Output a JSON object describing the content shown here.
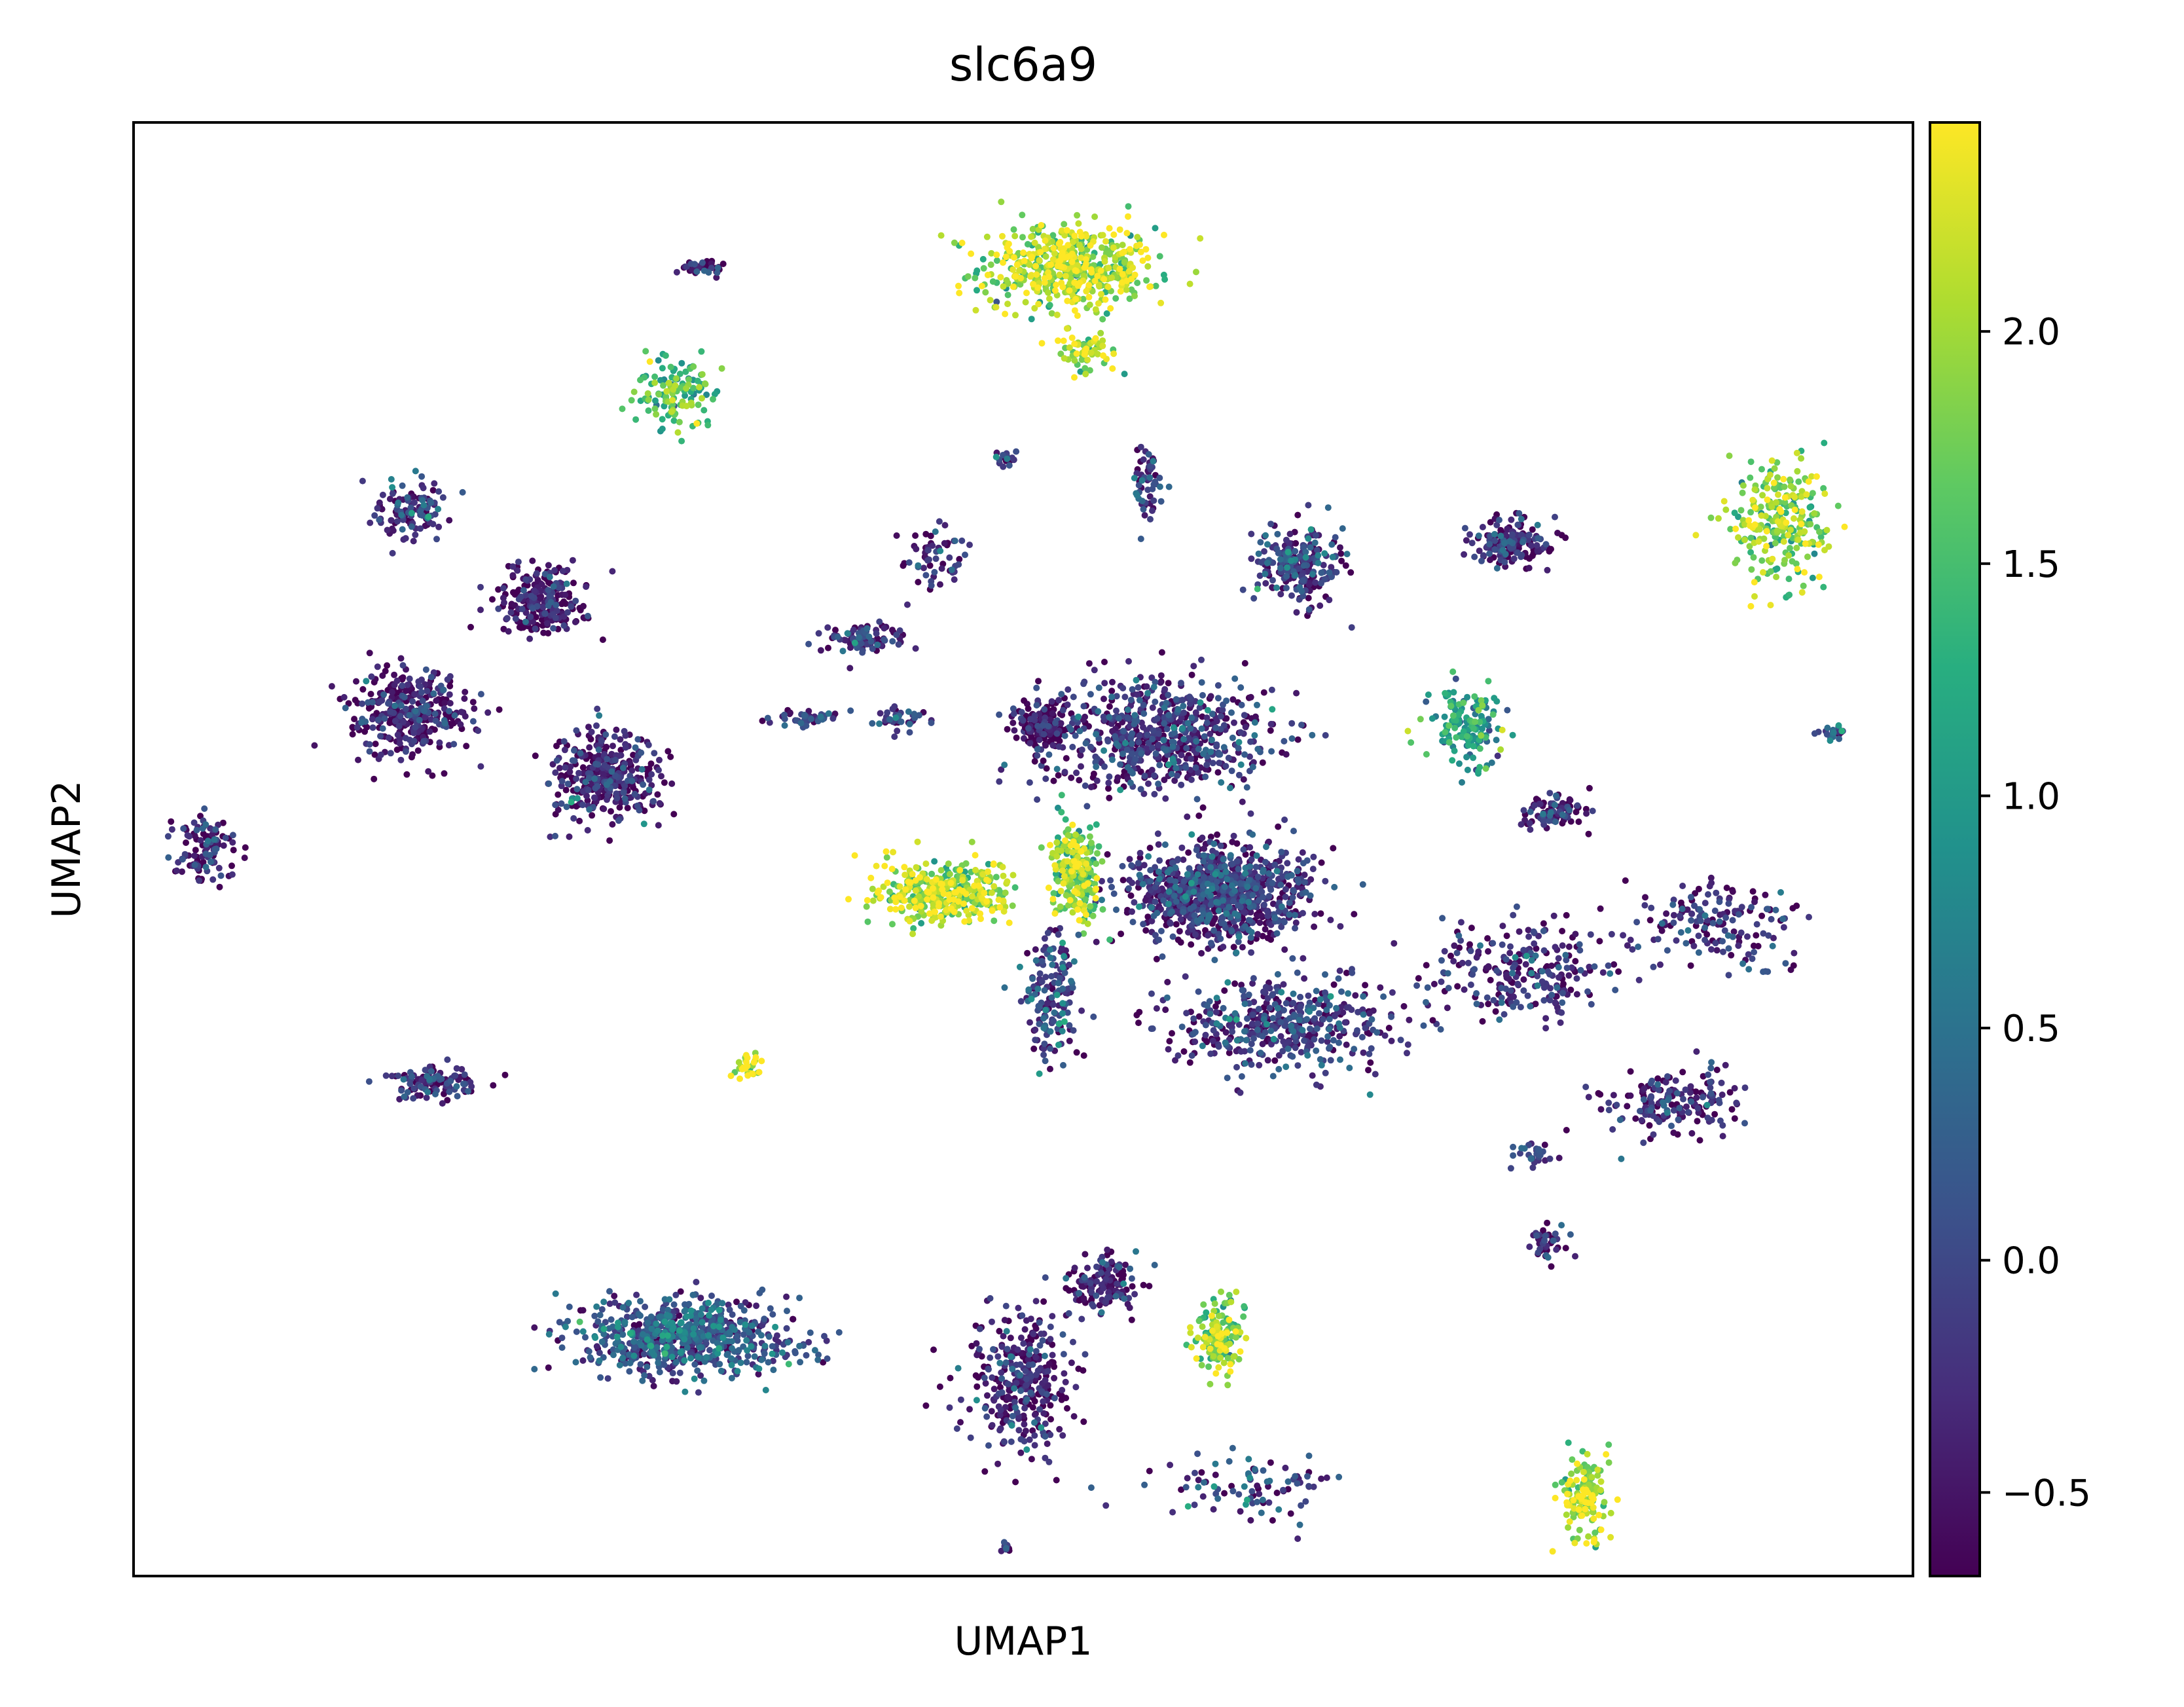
{
  "chart_data": {
    "type": "scatter",
    "title": "slc6a9",
    "xlabel": "UMAP1",
    "ylabel": "UMAP2",
    "x_ticks": "none",
    "y_ticks": "none",
    "grid": false,
    "legend": "none",
    "xlim": [
      -10,
      10
    ],
    "ylim": [
      -10,
      10
    ],
    "colorbar": {
      "colormap": "viridis",
      "min": -0.68,
      "max": 2.45,
      "ticks": [
        -0.5,
        0.0,
        0.5,
        1.0,
        1.5,
        2.0
      ],
      "tick_labels": [
        "−0.5",
        "0.0",
        "0.5",
        "1.0",
        "1.5",
        "2.0"
      ],
      "placement": "right"
    },
    "colors": {
      "low": "#440154",
      "mid": "#21918c",
      "high": "#fde725"
    },
    "clusters": [
      {
        "x": 0.5,
        "y": 8.0,
        "sx": 0.9,
        "sy": 0.55,
        "value": 2.0,
        "count": 520
      },
      {
        "x": 0.7,
        "y": 6.8,
        "sx": 0.35,
        "sy": 0.3,
        "value": 2.0,
        "count": 60
      },
      {
        "x": -3.9,
        "y": 6.3,
        "sx": 0.45,
        "sy": 0.45,
        "value": 1.5,
        "count": 130
      },
      {
        "x": -3.6,
        "y": 8.0,
        "sx": 0.25,
        "sy": 0.1,
        "value": -0.4,
        "count": 40
      },
      {
        "x": 1.5,
        "y": 1.6,
        "sx": 1.2,
        "sy": 0.7,
        "value": -0.3,
        "count": 700
      },
      {
        "x": 3.1,
        "y": 3.9,
        "sx": 0.45,
        "sy": 0.5,
        "value": -0.2,
        "count": 240
      },
      {
        "x": 5.5,
        "y": 4.2,
        "sx": 0.45,
        "sy": 0.3,
        "value": -0.4,
        "count": 170
      },
      {
        "x": 8.5,
        "y": 4.5,
        "sx": 0.5,
        "sy": 0.7,
        "value": 1.8,
        "count": 260
      },
      {
        "x": 5.0,
        "y": 1.7,
        "sx": 0.35,
        "sy": 0.45,
        "value": 1.0,
        "count": 150
      },
      {
        "x": 2.2,
        "y": -0.6,
        "sx": 0.9,
        "sy": 0.6,
        "value": -0.3,
        "count": 950
      },
      {
        "x": 2.9,
        "y": -2.4,
        "sx": 1.2,
        "sy": 0.55,
        "value": -0.2,
        "count": 450
      },
      {
        "x": 0.2,
        "y": 1.7,
        "sx": 0.25,
        "sy": 0.3,
        "value": -0.6,
        "count": 120
      },
      {
        "x": -0.9,
        "y": -0.6,
        "sx": 0.7,
        "sy": 0.4,
        "value": 2.0,
        "count": 360
      },
      {
        "x": 0.6,
        "y": -0.3,
        "sx": 0.25,
        "sy": 0.6,
        "value": 1.8,
        "count": 230
      },
      {
        "x": 0.3,
        "y": -2.0,
        "sx": 0.3,
        "sy": 0.8,
        "value": -0.1,
        "count": 160
      },
      {
        "x": -6.9,
        "y": 4.7,
        "sx": 0.35,
        "sy": 0.35,
        "value": -0.2,
        "count": 110
      },
      {
        "x": -5.4,
        "y": 3.4,
        "sx": 0.45,
        "sy": 0.4,
        "value": -0.5,
        "count": 260
      },
      {
        "x": -6.9,
        "y": 1.9,
        "sx": 0.6,
        "sy": 0.55,
        "value": -0.5,
        "count": 360
      },
      {
        "x": -4.7,
        "y": 1.0,
        "sx": 0.55,
        "sy": 0.55,
        "value": -0.5,
        "count": 360
      },
      {
        "x": -9.2,
        "y": 0.0,
        "sx": 0.3,
        "sy": 0.4,
        "value": -0.4,
        "count": 110
      },
      {
        "x": -6.6,
        "y": -3.2,
        "sx": 0.45,
        "sy": 0.2,
        "value": -0.3,
        "count": 110
      },
      {
        "x": -3.1,
        "y": -3.0,
        "sx": 0.15,
        "sy": 0.2,
        "value": 2.3,
        "count": 30
      },
      {
        "x": -3.8,
        "y": -6.7,
        "sx": 1.1,
        "sy": 0.45,
        "value": 0.1,
        "count": 720
      },
      {
        "x": 0.0,
        "y": -7.3,
        "sx": 0.5,
        "sy": 0.9,
        "value": -0.4,
        "count": 330
      },
      {
        "x": 0.9,
        "y": -6.0,
        "sx": 0.35,
        "sy": 0.35,
        "value": -0.5,
        "count": 150
      },
      {
        "x": 2.2,
        "y": -6.7,
        "sx": 0.25,
        "sy": 0.5,
        "value": 1.8,
        "count": 140
      },
      {
        "x": 2.5,
        "y": -8.8,
        "sx": 0.9,
        "sy": 0.4,
        "value": -0.1,
        "count": 90
      },
      {
        "x": 6.3,
        "y": -8.9,
        "sx": 0.25,
        "sy": 0.5,
        "value": 2.0,
        "count": 140
      },
      {
        "x": 5.6,
        "y": -1.7,
        "sx": 1.0,
        "sy": 0.6,
        "value": -0.3,
        "count": 250
      },
      {
        "x": 7.9,
        "y": -1.0,
        "sx": 0.8,
        "sy": 0.5,
        "value": -0.3,
        "count": 160
      },
      {
        "x": 7.3,
        "y": -3.5,
        "sx": 0.7,
        "sy": 0.4,
        "value": -0.4,
        "count": 180
      },
      {
        "x": 5.9,
        "y": 0.5,
        "sx": 0.4,
        "sy": 0.2,
        "value": -0.4,
        "count": 90
      },
      {
        "x": -1.0,
        "y": 4.0,
        "sx": 0.3,
        "sy": 0.4,
        "value": -0.4,
        "count": 60
      },
      {
        "x": -1.8,
        "y": 2.9,
        "sx": 0.4,
        "sy": 0.2,
        "value": -0.3,
        "count": 90
      },
      {
        "x": -2.4,
        "y": 1.8,
        "sx": 0.4,
        "sy": 0.1,
        "value": -0.3,
        "count": 50
      },
      {
        "x": -1.4,
        "y": 1.8,
        "sx": 0.3,
        "sy": 0.15,
        "value": -0.3,
        "count": 40
      },
      {
        "x": -0.2,
        "y": 5.4,
        "sx": 0.1,
        "sy": 0.1,
        "value": -0.2,
        "count": 20
      },
      {
        "x": 1.4,
        "y": 5.0,
        "sx": 0.15,
        "sy": 0.5,
        "value": -0.2,
        "count": 60
      },
      {
        "x": 5.9,
        "y": -5.4,
        "sx": 0.2,
        "sy": 0.25,
        "value": -0.3,
        "count": 40
      },
      {
        "x": 5.7,
        "y": -4.2,
        "sx": 0.2,
        "sy": 0.15,
        "value": -0.1,
        "count": 30
      },
      {
        "x": -0.2,
        "y": -9.6,
        "sx": 0.05,
        "sy": 0.05,
        "value": -0.5,
        "count": 12
      },
      {
        "x": 9.1,
        "y": 1.6,
        "sx": 0.15,
        "sy": 0.1,
        "value": 0.2,
        "count": 20
      }
    ]
  }
}
